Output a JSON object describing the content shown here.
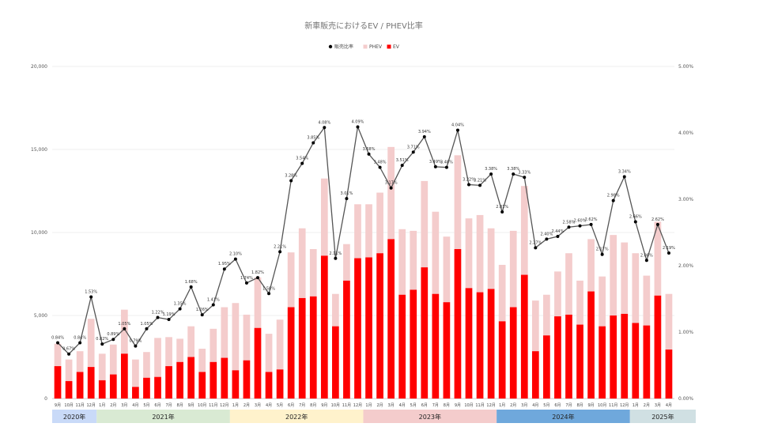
{
  "chart_data": {
    "type": "bar",
    "title": "新車販売におけるEV / PHEV比率",
    "legend": {
      "placement": "top",
      "items": [
        {
          "name": "販売比率",
          "color": "#000000",
          "kind": "line"
        },
        {
          "name": "PHEV",
          "color": "#f4cccc",
          "kind": "bar"
        },
        {
          "name": "EV",
          "color": "#ff0000",
          "kind": "bar"
        }
      ]
    },
    "categories": [
      "9月",
      "10月",
      "11月",
      "12月",
      "1月",
      "2月",
      "3月",
      "4月",
      "5月",
      "6月",
      "7月",
      "8月",
      "9月",
      "10月",
      "11月",
      "12月",
      "1月",
      "2月",
      "3月",
      "4月",
      "5月",
      "6月",
      "7月",
      "8月",
      "9月",
      "10月",
      "11月",
      "12月",
      "1月",
      "2月",
      "3月",
      "4月",
      "5月",
      "6月",
      "7月",
      "8月",
      "9月",
      "10月",
      "11月",
      "12月",
      "1月",
      "2月",
      "3月",
      "4月",
      "5月",
      "6月",
      "7月",
      "8月",
      "9月",
      "10月",
      "11月",
      "12月",
      "1月",
      "2月",
      "3月",
      "4月"
    ],
    "years": [
      {
        "label": "2020年",
        "count": 4,
        "color": "#c9daf8"
      },
      {
        "label": "2021年",
        "count": 12,
        "color": "#d9ead3"
      },
      {
        "label": "2022年",
        "count": 12,
        "color": "#fff2cc"
      },
      {
        "label": "2023年",
        "count": 12,
        "color": "#f4cccc"
      },
      {
        "label": "2024年",
        "count": 12,
        "color": "#6fa8dc"
      },
      {
        "label": "2025年",
        "count": 4,
        "color": "#d0e0e3"
      }
    ],
    "y_left": {
      "min": 0,
      "max": 20000,
      "ticks": [
        "0",
        "5,000",
        "10,000",
        "15,000",
        "20,000"
      ]
    },
    "y_right": {
      "min": 0,
      "max": 5,
      "ticks": [
        "0.00%",
        "1.00%",
        "2.00%",
        "3.00%",
        "4.00%",
        "5.00%"
      ]
    },
    "grid": true,
    "series": [
      {
        "name": "EV",
        "stack": "car",
        "axis": "left",
        "values": [
          1950,
          1050,
          1600,
          1900,
          1100,
          1450,
          2700,
          700,
          1250,
          1300,
          1950,
          2200,
          2500,
          1600,
          2200,
          2450,
          1700,
          2300,
          4250,
          1600,
          1750,
          5500,
          6050,
          6150,
          8600,
          4350,
          7100,
          8450,
          8500,
          8750,
          9600,
          6250,
          6550,
          7900,
          6300,
          5800,
          9000,
          6650,
          6400,
          6600,
          4650,
          5500,
          7450,
          2850,
          3800,
          4950,
          5050,
          4450,
          6450,
          4350,
          5000,
          5100,
          4550,
          4400,
          6200,
          2950
        ]
      },
      {
        "name": "PHEV",
        "stack": "car",
        "axis": "left",
        "values": [
          1350,
          1300,
          1250,
          2900,
          1600,
          1800,
          2650,
          1650,
          1550,
          2350,
          1750,
          1400,
          1850,
          1400,
          2000,
          3050,
          4050,
          2750,
          3050,
          2300,
          3000,
          3300,
          4200,
          2850,
          4650,
          1950,
          2200,
          3250,
          3200,
          3650,
          5550,
          3950,
          3550,
          5200,
          4950,
          3950,
          5650,
          4200,
          4650,
          3650,
          3400,
          4600,
          5350,
          3050,
          2450,
          2700,
          3700,
          2650,
          3150,
          3000,
          4850,
          4300,
          4200,
          3000,
          4450,
          3350
        ]
      },
      {
        "name": "販売比率",
        "type": "line",
        "axis": "right",
        "unit": "%",
        "values": [
          0.84,
          0.67,
          0.84,
          1.53,
          0.82,
          0.89,
          1.05,
          0.79,
          1.05,
          1.22,
          1.19,
          1.35,
          1.68,
          1.26,
          1.41,
          1.95,
          2.1,
          1.74,
          1.82,
          1.58,
          2.21,
          3.28,
          3.54,
          3.85,
          4.08,
          2.11,
          3.01,
          4.09,
          3.68,
          3.48,
          3.17,
          3.51,
          3.71,
          3.94,
          3.49,
          3.48,
          4.04,
          3.22,
          3.21,
          3.38,
          2.81,
          3.38,
          3.33,
          2.27,
          2.4,
          2.44,
          2.58,
          2.6,
          2.62,
          2.17,
          2.98,
          3.34,
          2.66,
          2.08,
          2.62,
          2.19
        ],
        "labels": [
          "0.84%",
          "0.67%",
          "0.84%",
          "1.53%",
          "0.82%",
          "0.89%",
          "1.05%",
          "0.79%",
          "1.05%",
          "1.22%",
          "1.19%",
          "1.35%",
          "1.68%",
          "1.26%",
          "1.41%",
          "1.95%",
          "2.10%",
          "1.74%",
          "1.82%",
          "1.58%",
          "2.21%",
          "3.28%",
          "3.54%",
          "3.85%",
          "4.08%",
          "2.11%",
          "3.01%",
          "4.09%",
          "3.68%",
          "3.48%",
          "3.17%",
          "3.51%",
          "3.71%",
          "3.94%",
          "3.49%",
          "3.48%",
          "4.04%",
          "3.22%",
          "3.21%",
          "3.38%",
          "2.81%",
          "3.38%",
          "3.33%",
          "2.27%",
          "2.40%",
          "2.44%",
          "2.58%",
          "2.60%",
          "2.62%",
          "2.17%",
          "2.98%",
          "3.34%",
          "2.66%",
          "2.08%",
          "2.62%",
          "2.19%"
        ]
      }
    ]
  }
}
